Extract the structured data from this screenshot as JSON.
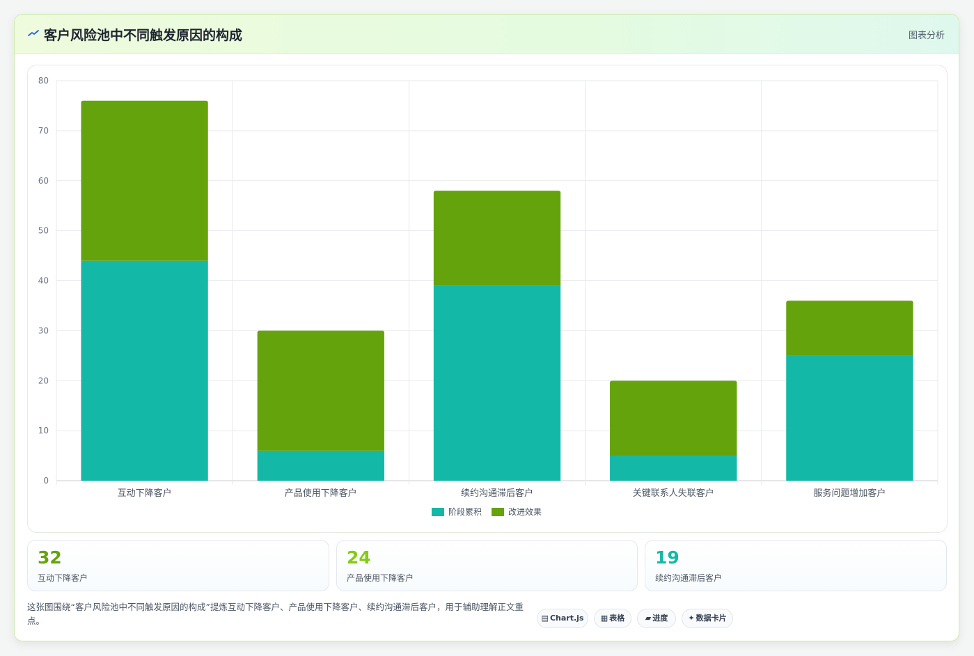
{
  "header": {
    "title": "客户风险池中不同触发原因的构成",
    "tag": "图表分析"
  },
  "colors": {
    "series_a": "#14b8a6",
    "series_b": "#65a30d",
    "accent_green": "#65a30d",
    "accent_lime": "#84cc16",
    "accent_teal": "#14b8a6"
  },
  "chart_data": {
    "type": "bar",
    "stacked": true,
    "categories": [
      "互动下降客户",
      "产品使用下降客户",
      "续约沟通滞后客户",
      "关键联系人失联客户",
      "服务问题增加客户"
    ],
    "series": [
      {
        "name": "阶段累积",
        "values": [
          44,
          6,
          39,
          5,
          25
        ],
        "color": "#14b8a6"
      },
      {
        "name": "改进效果",
        "values": [
          32,
          24,
          19,
          15,
          11
        ],
        "color": "#65a30d"
      }
    ],
    "ylim": [
      0,
      80
    ],
    "yticks": [
      0,
      10,
      20,
      30,
      40,
      50,
      60,
      70,
      80
    ],
    "grid": true,
    "legend": "bottom"
  },
  "stats": [
    {
      "value": "32",
      "label": "互动下降客户",
      "color": "#65a30d"
    },
    {
      "value": "24",
      "label": "产品使用下降客户",
      "color": "#84cc16"
    },
    {
      "value": "19",
      "label": "续约沟通滞后客户",
      "color": "#14b8a6"
    }
  ],
  "footer": {
    "description": "这张图围绕“客户风险池中不同触发原因的构成”提炼互动下降客户、产品使用下降客户、续约沟通滞后客户，用于辅助理解正文重点。",
    "chips": [
      {
        "icon": "▤",
        "label": "Chart.js"
      },
      {
        "icon": "▦",
        "label": "表格"
      },
      {
        "icon": "▰",
        "label": "进度"
      },
      {
        "icon": "✦",
        "label": "数据卡片"
      }
    ]
  }
}
